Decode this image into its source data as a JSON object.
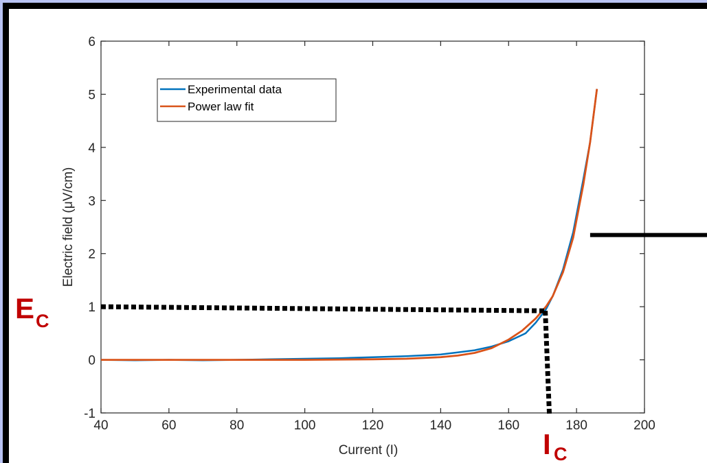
{
  "colors": {
    "background": "#b9c3f3",
    "border": "#000000",
    "panel": "#ffffff",
    "experimental": "#0072bd",
    "fit": "#d95319",
    "annotation": "#c00000",
    "dotted": "#000000"
  },
  "chart_data": {
    "type": "line",
    "xlabel": "Current (I)",
    "ylabel": "Electric field (μV/cm)",
    "xlim": [
      40,
      200
    ],
    "ylim": [
      -1,
      6
    ],
    "x_ticks": [
      40,
      60,
      80,
      100,
      120,
      140,
      160,
      180,
      200
    ],
    "y_ticks": [
      -1,
      0,
      1,
      2,
      3,
      4,
      5,
      6
    ],
    "legend_position": "top-left",
    "grid": false,
    "series": [
      {
        "name": "Experimental data",
        "x": [
          40,
          50,
          60,
          70,
          80,
          90,
          100,
          110,
          120,
          130,
          140,
          145,
          150,
          155,
          160,
          165,
          168,
          171,
          173,
          176,
          179,
          182,
          184,
          186
        ],
        "y": [
          0.0,
          -0.01,
          0.0,
          -0.01,
          0.0,
          0.01,
          0.02,
          0.03,
          0.05,
          0.07,
          0.1,
          0.14,
          0.18,
          0.25,
          0.35,
          0.5,
          0.7,
          0.95,
          1.2,
          1.7,
          2.4,
          3.4,
          4.1,
          5.1
        ]
      },
      {
        "name": "Power law fit",
        "x": [
          40,
          60,
          80,
          100,
          120,
          130,
          140,
          145,
          150,
          155,
          160,
          164,
          168,
          171,
          173,
          176,
          179,
          182,
          184,
          186
        ],
        "y": [
          0.0,
          0.0,
          0.0,
          0.0,
          0.01,
          0.02,
          0.05,
          0.08,
          0.13,
          0.22,
          0.38,
          0.55,
          0.78,
          1.0,
          1.2,
          1.65,
          2.3,
          3.3,
          4.1,
          5.1
        ]
      }
    ],
    "annotations": {
      "ec_label_main": "E",
      "ec_label_sub": "C",
      "ic_label_main": "I",
      "ic_label_sub": "C",
      "critical_point": {
        "x": 172,
        "y": 1
      }
    },
    "arrow_line_y": 2.35
  }
}
